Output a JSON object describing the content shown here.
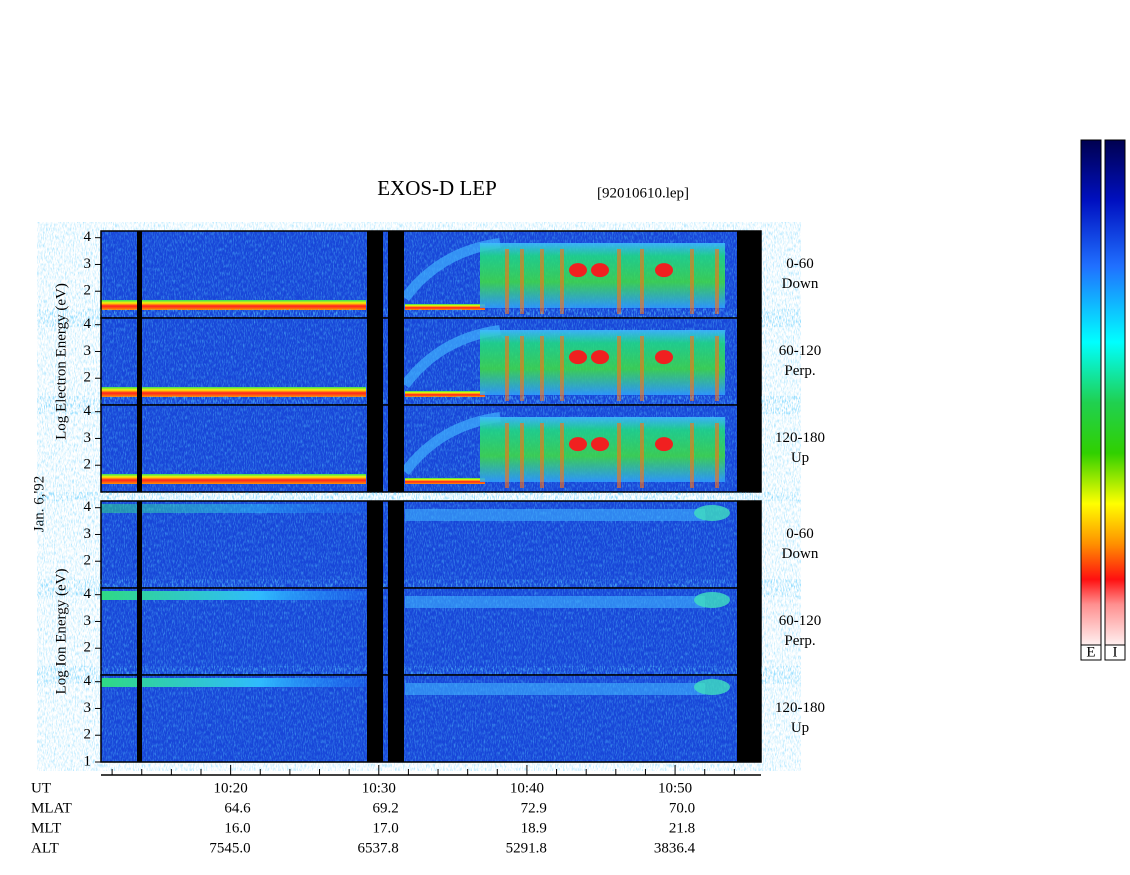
{
  "chart_data": {
    "type": "spectrogram",
    "title": "EXOS-D LEP",
    "subtitle": "[92010610.lep]",
    "date_label": "Jan. 6,'92",
    "groups": [
      {
        "ylabel": "Log Electron Energy (eV)",
        "panels": [
          {
            "range": "0-60",
            "direction": "Down",
            "ylim": [
              1,
              4.25
            ],
            "yticks": [
              2,
              3,
              4
            ]
          },
          {
            "range": "60-120",
            "direction": "Perp.",
            "ylim": [
              1,
              4.25
            ],
            "yticks": [
              2,
              3,
              4
            ]
          },
          {
            "range": "120-180",
            "direction": "Up",
            "ylim": [
              1,
              4.25
            ],
            "yticks": [
              2,
              3,
              4
            ]
          }
        ]
      },
      {
        "ylabel": "Log Ion Energy (eV)",
        "panels": [
          {
            "range": "0-60",
            "direction": "Down",
            "ylim": [
              1,
              4.25
            ],
            "yticks": [
              2,
              3,
              4
            ]
          },
          {
            "range": "60-120",
            "direction": "Perp.",
            "ylim": [
              1,
              4.25
            ],
            "yticks": [
              2,
              3,
              4
            ]
          },
          {
            "range": "120-180",
            "direction": "Up",
            "ylim": [
              1,
              4.25
            ],
            "yticks": [
              1,
              2,
              3,
              4
            ]
          }
        ]
      }
    ],
    "xlim": [
      611.25,
      655.8
    ],
    "xticks": [
      {
        "value": 620,
        "label": "10:20"
      },
      {
        "value": 630,
        "label": "10:30"
      },
      {
        "value": 640,
        "label": "10:40"
      },
      {
        "value": 650,
        "label": "10:50"
      }
    ],
    "xminorticks": [
      612,
      614,
      616,
      618,
      622,
      624,
      626,
      628,
      632,
      634,
      636,
      638,
      642,
      644,
      646,
      648,
      652,
      654
    ],
    "x_label": "UT",
    "orbit_rows": [
      {
        "label": "MLAT",
        "values": [
          "64.6",
          "69.2",
          "72.9",
          "70.0"
        ]
      },
      {
        "label": "MLT",
        "values": [
          "16.0",
          "17.0",
          "18.9",
          "21.8"
        ]
      },
      {
        "label": "ALT",
        "values": [
          "7545.0",
          "6537.8",
          "5291.8",
          "3836.4"
        ]
      }
    ],
    "colorbar_labels": [
      "E",
      "I"
    ]
  }
}
